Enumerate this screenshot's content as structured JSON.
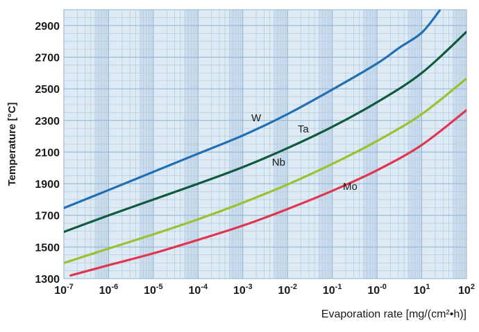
{
  "chart_data": {
    "type": "line",
    "title": "",
    "xlabel": "Evaporation rate [mg/(cm²•h)]",
    "ylabel": "Temperature [°C]",
    "x_scale": "log",
    "xlim": [
      -7,
      2
    ],
    "ylim": [
      1300,
      3000
    ],
    "y_ticks": [
      1300,
      1500,
      1700,
      1900,
      2100,
      2300,
      2500,
      2700,
      2900
    ],
    "x_ticks": [
      {
        "exp": -7,
        "base": "10",
        "sup": "-7"
      },
      {
        "exp": -6,
        "base": "10",
        "sup": "-6"
      },
      {
        "exp": -5,
        "base": "10",
        "sup": "-5"
      },
      {
        "exp": -4,
        "base": "10",
        "sup": "-4"
      },
      {
        "exp": -3,
        "base": "10",
        "sup": "-3"
      },
      {
        "exp": -2,
        "base": "10",
        "sup": "-2"
      },
      {
        "exp": -1,
        "base": "10",
        "sup": "-1"
      },
      {
        "exp": 0,
        "base": "10",
        "sup": "-0"
      },
      {
        "exp": 1,
        "base": "10",
        "sup": "1"
      },
      {
        "exp": 2,
        "base": "10",
        "sup": "2"
      }
    ],
    "grid": true,
    "colors": {
      "plot_bg": "#deeaf4",
      "band": "#cbdcec",
      "grid_major": "#8fb2d3",
      "grid_minor": "#b2cbe2"
    },
    "series": [
      {
        "name": "W",
        "color": "#1f6fb4",
        "label_x": -2.7,
        "label_y": 2295,
        "points": [
          [
            -7.1,
            1735
          ],
          [
            -6,
            1860
          ],
          [
            -5,
            1975
          ],
          [
            -4,
            2090
          ],
          [
            -3,
            2205
          ],
          [
            -2,
            2340
          ],
          [
            -1,
            2495
          ],
          [
            0,
            2660
          ],
          [
            0.5,
            2760
          ],
          [
            1,
            2855
          ],
          [
            1.4,
            2995
          ]
        ]
      },
      {
        "name": "Ta",
        "color": "#0e5a3c",
        "label_x": -1.65,
        "label_y": 2225,
        "points": [
          [
            -7.1,
            1585
          ],
          [
            -6,
            1700
          ],
          [
            -5,
            1800
          ],
          [
            -4,
            1900
          ],
          [
            -3,
            2005
          ],
          [
            -2,
            2125
          ],
          [
            -1,
            2260
          ],
          [
            0,
            2415
          ],
          [
            1,
            2600
          ],
          [
            2,
            2860
          ]
        ]
      },
      {
        "name": "Nb",
        "color": "#9bc22e",
        "label_x": -2.2,
        "label_y": 2015,
        "points": [
          [
            -7.1,
            1390
          ],
          [
            -6,
            1490
          ],
          [
            -5,
            1580
          ],
          [
            -4,
            1675
          ],
          [
            -3,
            1780
          ],
          [
            -2,
            1895
          ],
          [
            -1,
            2025
          ],
          [
            0,
            2170
          ],
          [
            1,
            2340
          ],
          [
            2,
            2565
          ]
        ]
      },
      {
        "name": "Mo",
        "color": "#e1344e",
        "label_x": -0.6,
        "label_y": 1860,
        "points": [
          [
            -6.85,
            1320
          ],
          [
            -6,
            1385
          ],
          [
            -5,
            1460
          ],
          [
            -4,
            1545
          ],
          [
            -3,
            1635
          ],
          [
            -2,
            1740
          ],
          [
            -1,
            1855
          ],
          [
            0,
            1985
          ],
          [
            1,
            2145
          ],
          [
            2,
            2365
          ]
        ]
      }
    ]
  }
}
